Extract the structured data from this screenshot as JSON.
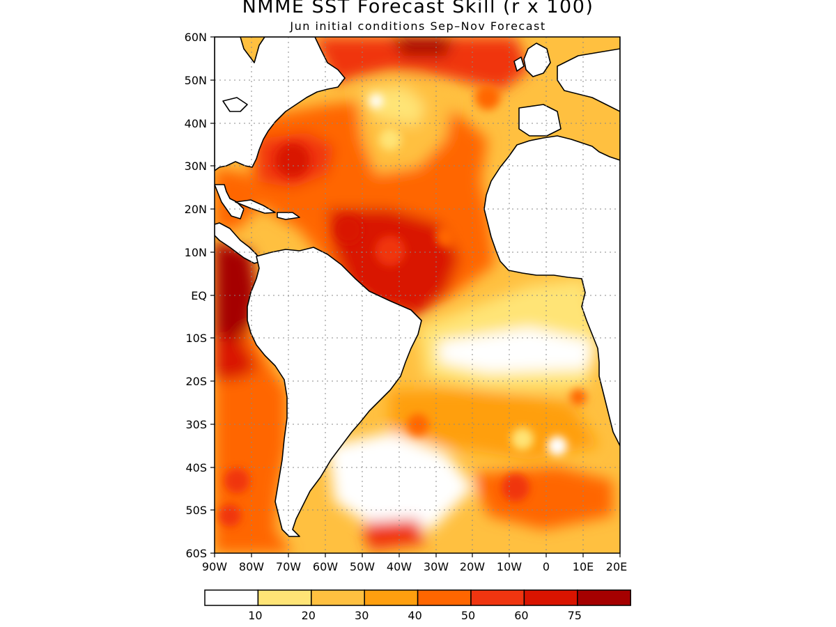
{
  "title": "NMME SST Forecast Skill (r x 100)",
  "subtitle": "Jun initial conditions  Sep–Nov Forecast",
  "lat_labels": [
    "60N",
    "50N",
    "40N",
    "30N",
    "20N",
    "10N",
    "EQ",
    "10S",
    "20S",
    "30S",
    "40S",
    "50S",
    "60S"
  ],
  "lon_labels": [
    "90W",
    "80W",
    "70W",
    "60W",
    "50W",
    "40W",
    "30W",
    "20W",
    "10W",
    "0",
    "10E",
    "20E"
  ],
  "colorbar": {
    "colors": [
      "#ffffff",
      "#ffe476",
      "#ffc040",
      "#ff9f0f",
      "#ff6600",
      "#f03510",
      "#d91400",
      "#a50000"
    ],
    "labels": [
      "10",
      "20",
      "30",
      "40",
      "50",
      "60",
      "75"
    ]
  },
  "map_extent": {
    "lon": [
      -90,
      20
    ],
    "lat": [
      -60,
      60
    ]
  },
  "skill_fields": [
    {
      "region": "north-atlantic-subtropics",
      "lon": [
        -65,
        -20
      ],
      "lat": [
        20,
        35
      ],
      "value": 50
    },
    {
      "region": "eastern-pacific-equatorial",
      "lon": [
        -90,
        -80
      ],
      "lat": [
        -10,
        10
      ],
      "value": 80
    },
    {
      "region": "tropical-atlantic",
      "lon": [
        -40,
        -25
      ],
      "lat": [
        -5,
        15
      ],
      "value": 60
    },
    {
      "region": "southeast-atlantic",
      "lon": [
        -20,
        10
      ],
      "lat": [
        -20,
        -10
      ],
      "value": 5
    }
  ]
}
